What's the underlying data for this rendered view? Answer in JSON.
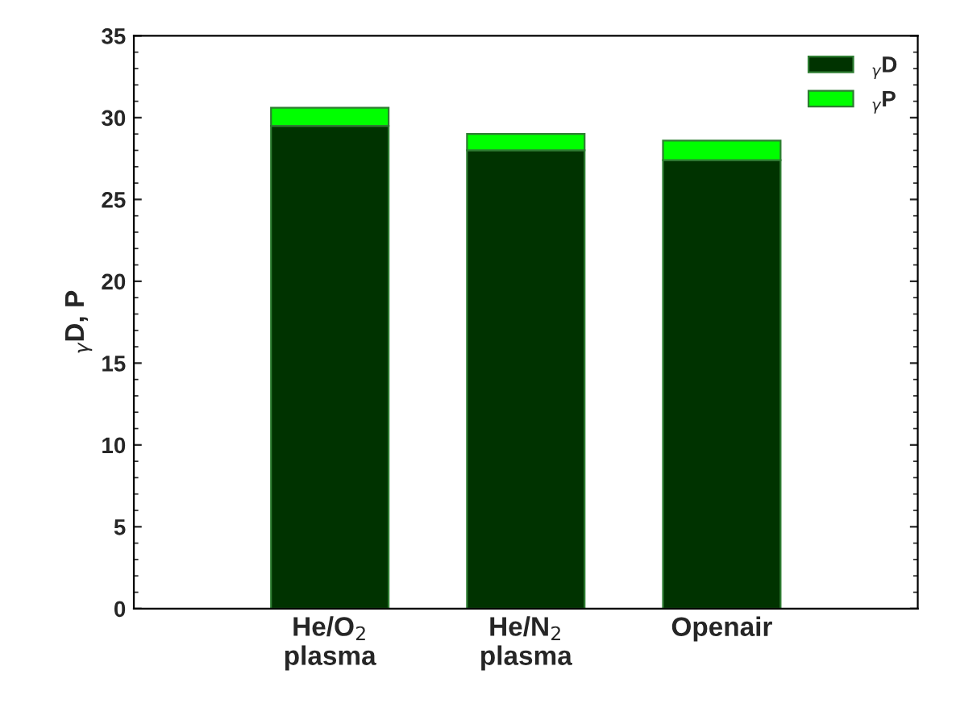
{
  "chart_data": {
    "type": "bar",
    "stacked": true,
    "ylabel": "$_{γ}$D, P",
    "categories": [
      "He/O$_{2}$\nplasma",
      "He/N$_{2}$\nplasma",
      "Openair"
    ],
    "series": [
      {
        "name": "$_{γ}$D",
        "color": "#003300",
        "values": [
          29.5,
          28.0,
          27.4
        ]
      },
      {
        "name": "$_{γ}$P",
        "color": "#00ff00",
        "values": [
          1.1,
          1.0,
          1.2
        ]
      }
    ],
    "ylim": [
      0,
      35
    ],
    "yticks": [
      0,
      5,
      10,
      15,
      20,
      25,
      30,
      35
    ],
    "grid": false,
    "legend": "top right"
  }
}
